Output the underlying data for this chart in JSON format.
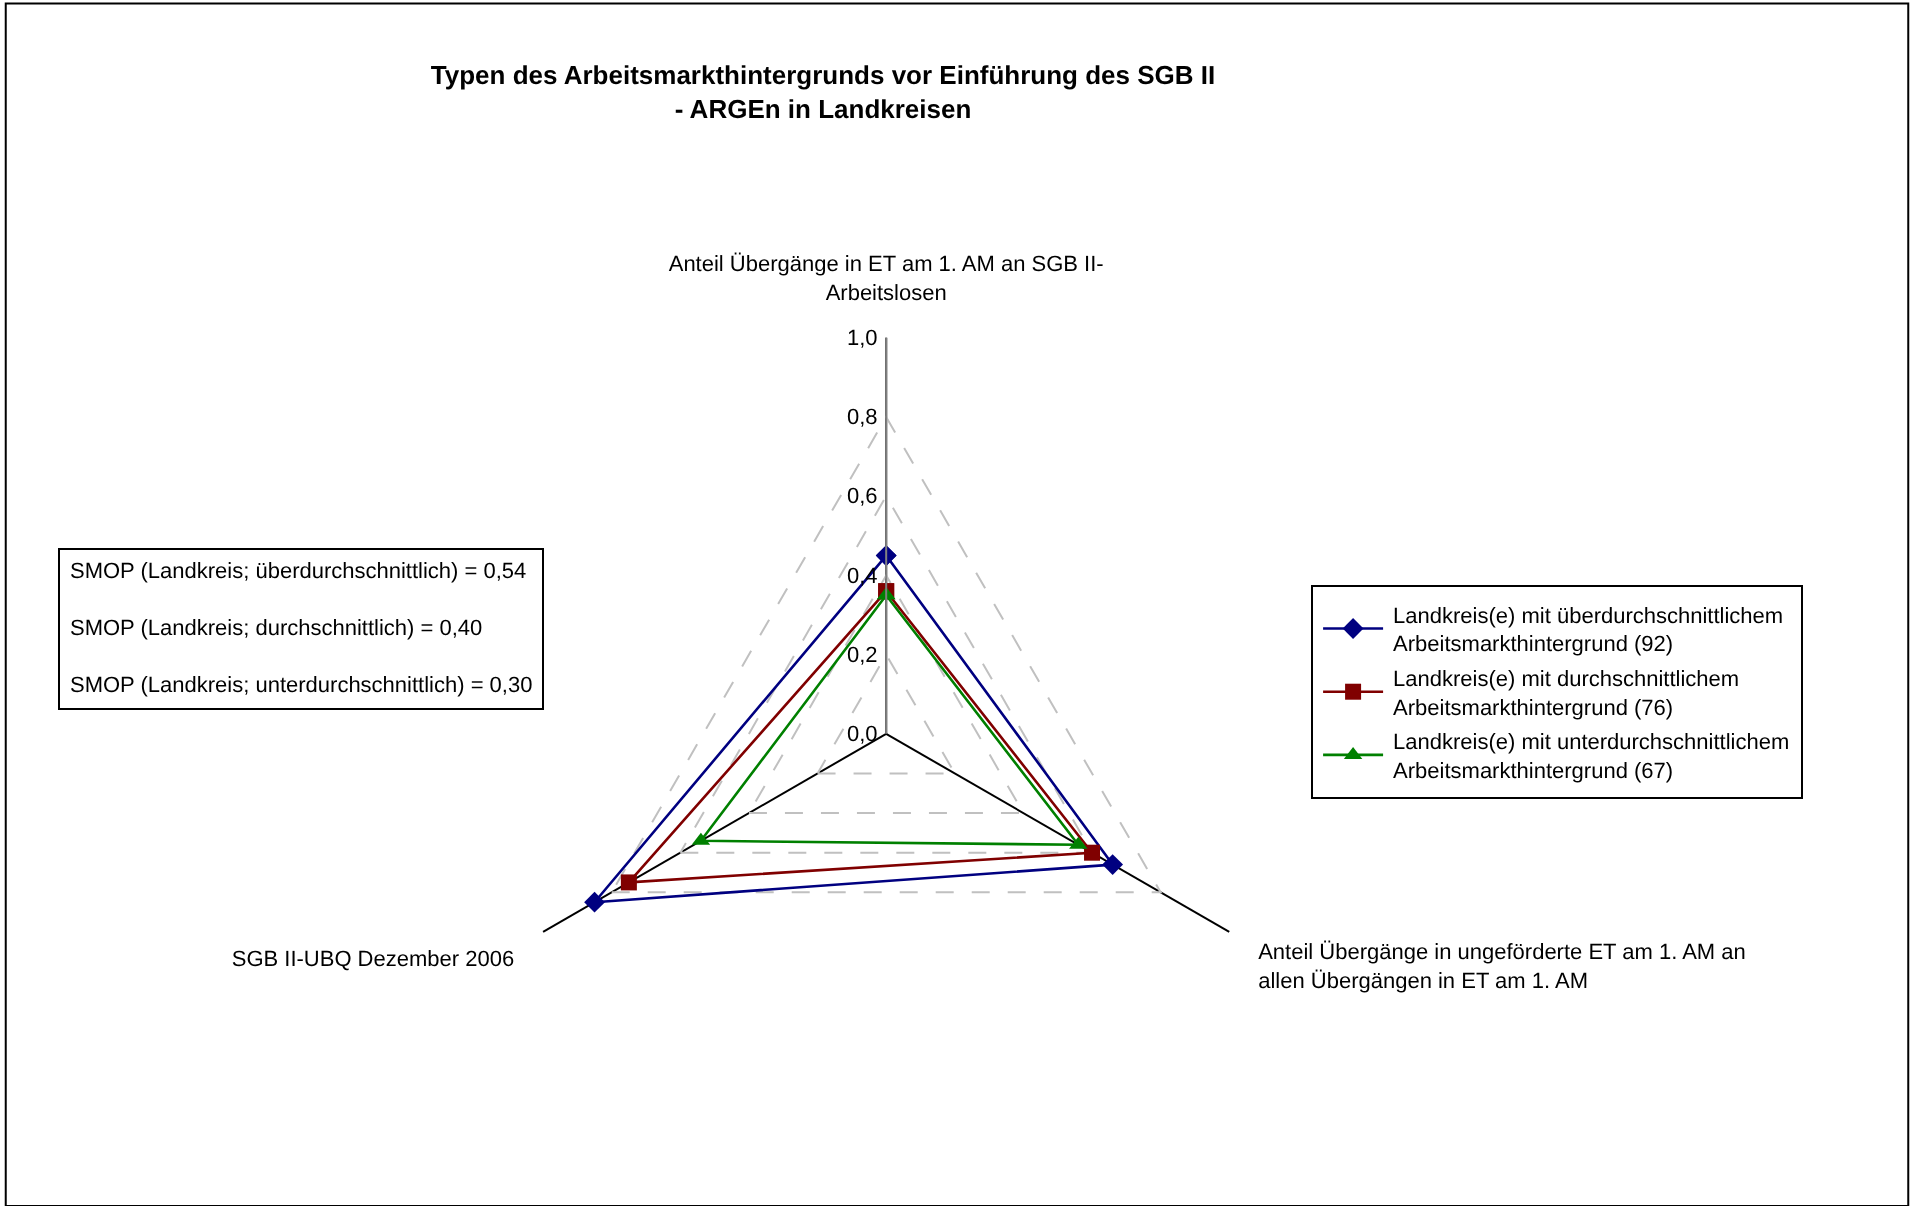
{
  "chart_data": {
    "type": "radar",
    "title": "Typen des Arbeitsmarkthintergrunds vor Einführung des SGB II\n- ARGEn in Landkreisen",
    "categories": [
      "Anteil Übergänge in ET am 1. AM an SGB II-\nArbeitslosen",
      "Anteil Übergänge in ungeförderte ET am 1. AM an\nallen Übergängen in ET am 1. AM",
      "SGB II-UBQ Dezember 2006"
    ],
    "series": [
      {
        "name": "Landkreis(e) mit überdurchschnittlichem\nArbeitsmarkthintergrund (92)",
        "color": "#000080",
        "marker": "diamond",
        "values": [
          0.45,
          0.66,
          0.85
        ]
      },
      {
        "name": "Landkreis(e) mit durchschnittlichem\nArbeitsmarkthintergrund (76)",
        "color": "#800000",
        "marker": "square",
        "values": [
          0.36,
          0.6,
          0.75
        ]
      },
      {
        "name": "Landkreis(e) mit unterdurchschnittlichem\nArbeitsmarkthintergrund (67)",
        "color": "#008000",
        "marker": "triangle",
        "values": [
          0.35,
          0.56,
          0.54
        ]
      }
    ],
    "ylim": [
      0,
      1
    ],
    "yticks": [
      {
        "value": 0,
        "label": "0,0"
      },
      {
        "value": 0.2,
        "label": "0,2"
      },
      {
        "value": 0.4,
        "label": "0,4"
      },
      {
        "value": 0.6,
        "label": "0,6"
      },
      {
        "value": 0.8,
        "label": "0,8"
      },
      {
        "value": 1,
        "label": "1,0"
      }
    ],
    "grid": true,
    "legend": "right",
    "annotations": [
      "SMOP (Landkreis; überdurchschnittlich) = 0,54",
      "SMOP (Landkreis; durchschnittlich) = 0,40",
      "SMOP (Landkreis; unterdurchschnittlich) = 0,30"
    ]
  }
}
